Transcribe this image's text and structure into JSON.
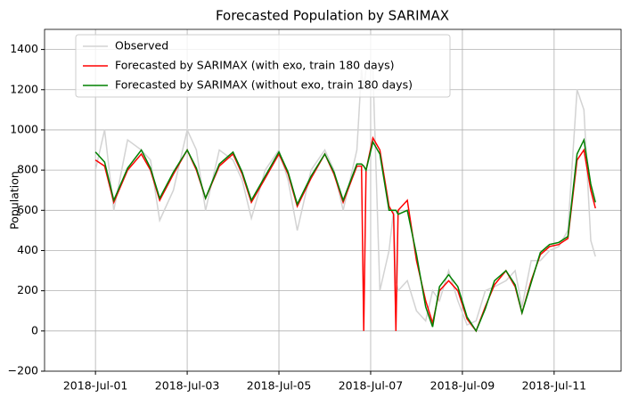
{
  "chart_data": {
    "type": "line",
    "title": "Forecasted Population by SARIMAX",
    "y_label": "Population",
    "x": [
      1.0,
      1.2,
      1.4,
      1.7,
      2.0,
      2.2,
      2.4,
      2.7,
      3.0,
      3.2,
      3.4,
      3.7,
      4.0,
      4.2,
      4.4,
      4.7,
      5.0,
      5.2,
      5.4,
      5.7,
      6.0,
      6.2,
      6.4,
      6.7,
      6.8,
      6.85,
      6.9,
      7.05,
      7.2,
      7.4,
      7.5,
      7.55,
      7.6,
      7.8,
      8.0,
      8.2,
      8.35,
      8.5,
      8.7,
      8.9,
      9.1,
      9.3,
      9.5,
      9.7,
      9.95,
      10.15,
      10.3,
      10.5,
      10.7,
      10.9,
      11.1,
      11.3,
      11.5,
      11.65,
      11.8,
      11.9
    ],
    "series": [
      {
        "name": "Observed",
        "color": "#d3d3d3",
        "values": [
          800,
          1000,
          600,
          950,
          900,
          850,
          550,
          700,
          1000,
          900,
          600,
          900,
          850,
          750,
          560,
          800,
          900,
          750,
          500,
          800,
          900,
          800,
          600,
          900,
          1300,
          1200,
          1300,
          1300,
          200,
          400,
          600,
          250,
          200,
          250,
          100,
          50,
          200,
          150,
          300,
          150,
          30,
          50,
          200,
          220,
          250,
          300,
          120,
          350,
          350,
          400,
          420,
          500,
          1200,
          1100,
          450,
          370
        ]
      },
      {
        "name": "Forecasted by SARIMAX (with exo, train 180 days)",
        "color": "#ff0000",
        "values": [
          850,
          820,
          640,
          800,
          880,
          800,
          650,
          780,
          900,
          800,
          660,
          820,
          880,
          780,
          640,
          760,
          880,
          780,
          620,
          760,
          880,
          780,
          640,
          820,
          820,
          0,
          800,
          960,
          900,
          620,
          580,
          0,
          600,
          650,
          350,
          150,
          40,
          200,
          250,
          200,
          60,
          0,
          120,
          230,
          300,
          220,
          90,
          250,
          380,
          420,
          430,
          460,
          850,
          900,
          700,
          610
        ]
      },
      {
        "name": "Forecasted by SARIMAX (without exo, train 180 days)",
        "color": "#008000",
        "values": [
          890,
          840,
          650,
          810,
          900,
          810,
          660,
          790,
          900,
          810,
          660,
          830,
          890,
          790,
          650,
          770,
          890,
          790,
          630,
          770,
          880,
          790,
          650,
          830,
          830,
          820,
          800,
          940,
          880,
          600,
          600,
          600,
          580,
          600,
          380,
          120,
          20,
          220,
          280,
          220,
          70,
          0,
          110,
          250,
          300,
          230,
          90,
          240,
          390,
          430,
          440,
          470,
          880,
          950,
          730,
          640
        ]
      }
    ],
    "xlim": [
      -0.11,
      12.46
    ],
    "xticks": [
      {
        "value": 1,
        "label": "2018-Jul-01"
      },
      {
        "value": 3,
        "label": "2018-Jul-03"
      },
      {
        "value": 5,
        "label": "2018-Jul-05"
      },
      {
        "value": 7,
        "label": "2018-Jul-07"
      },
      {
        "value": 9,
        "label": "2018-Jul-09"
      },
      {
        "value": 11,
        "label": "2018-Jul-11"
      }
    ],
    "ylim": [
      -200,
      1500
    ],
    "yticks": [
      {
        "value": -200,
        "label": "−200"
      },
      0,
      200,
      400,
      600,
      800,
      1000,
      1200,
      1400
    ],
    "grid": true,
    "legend": "upper-left"
  }
}
